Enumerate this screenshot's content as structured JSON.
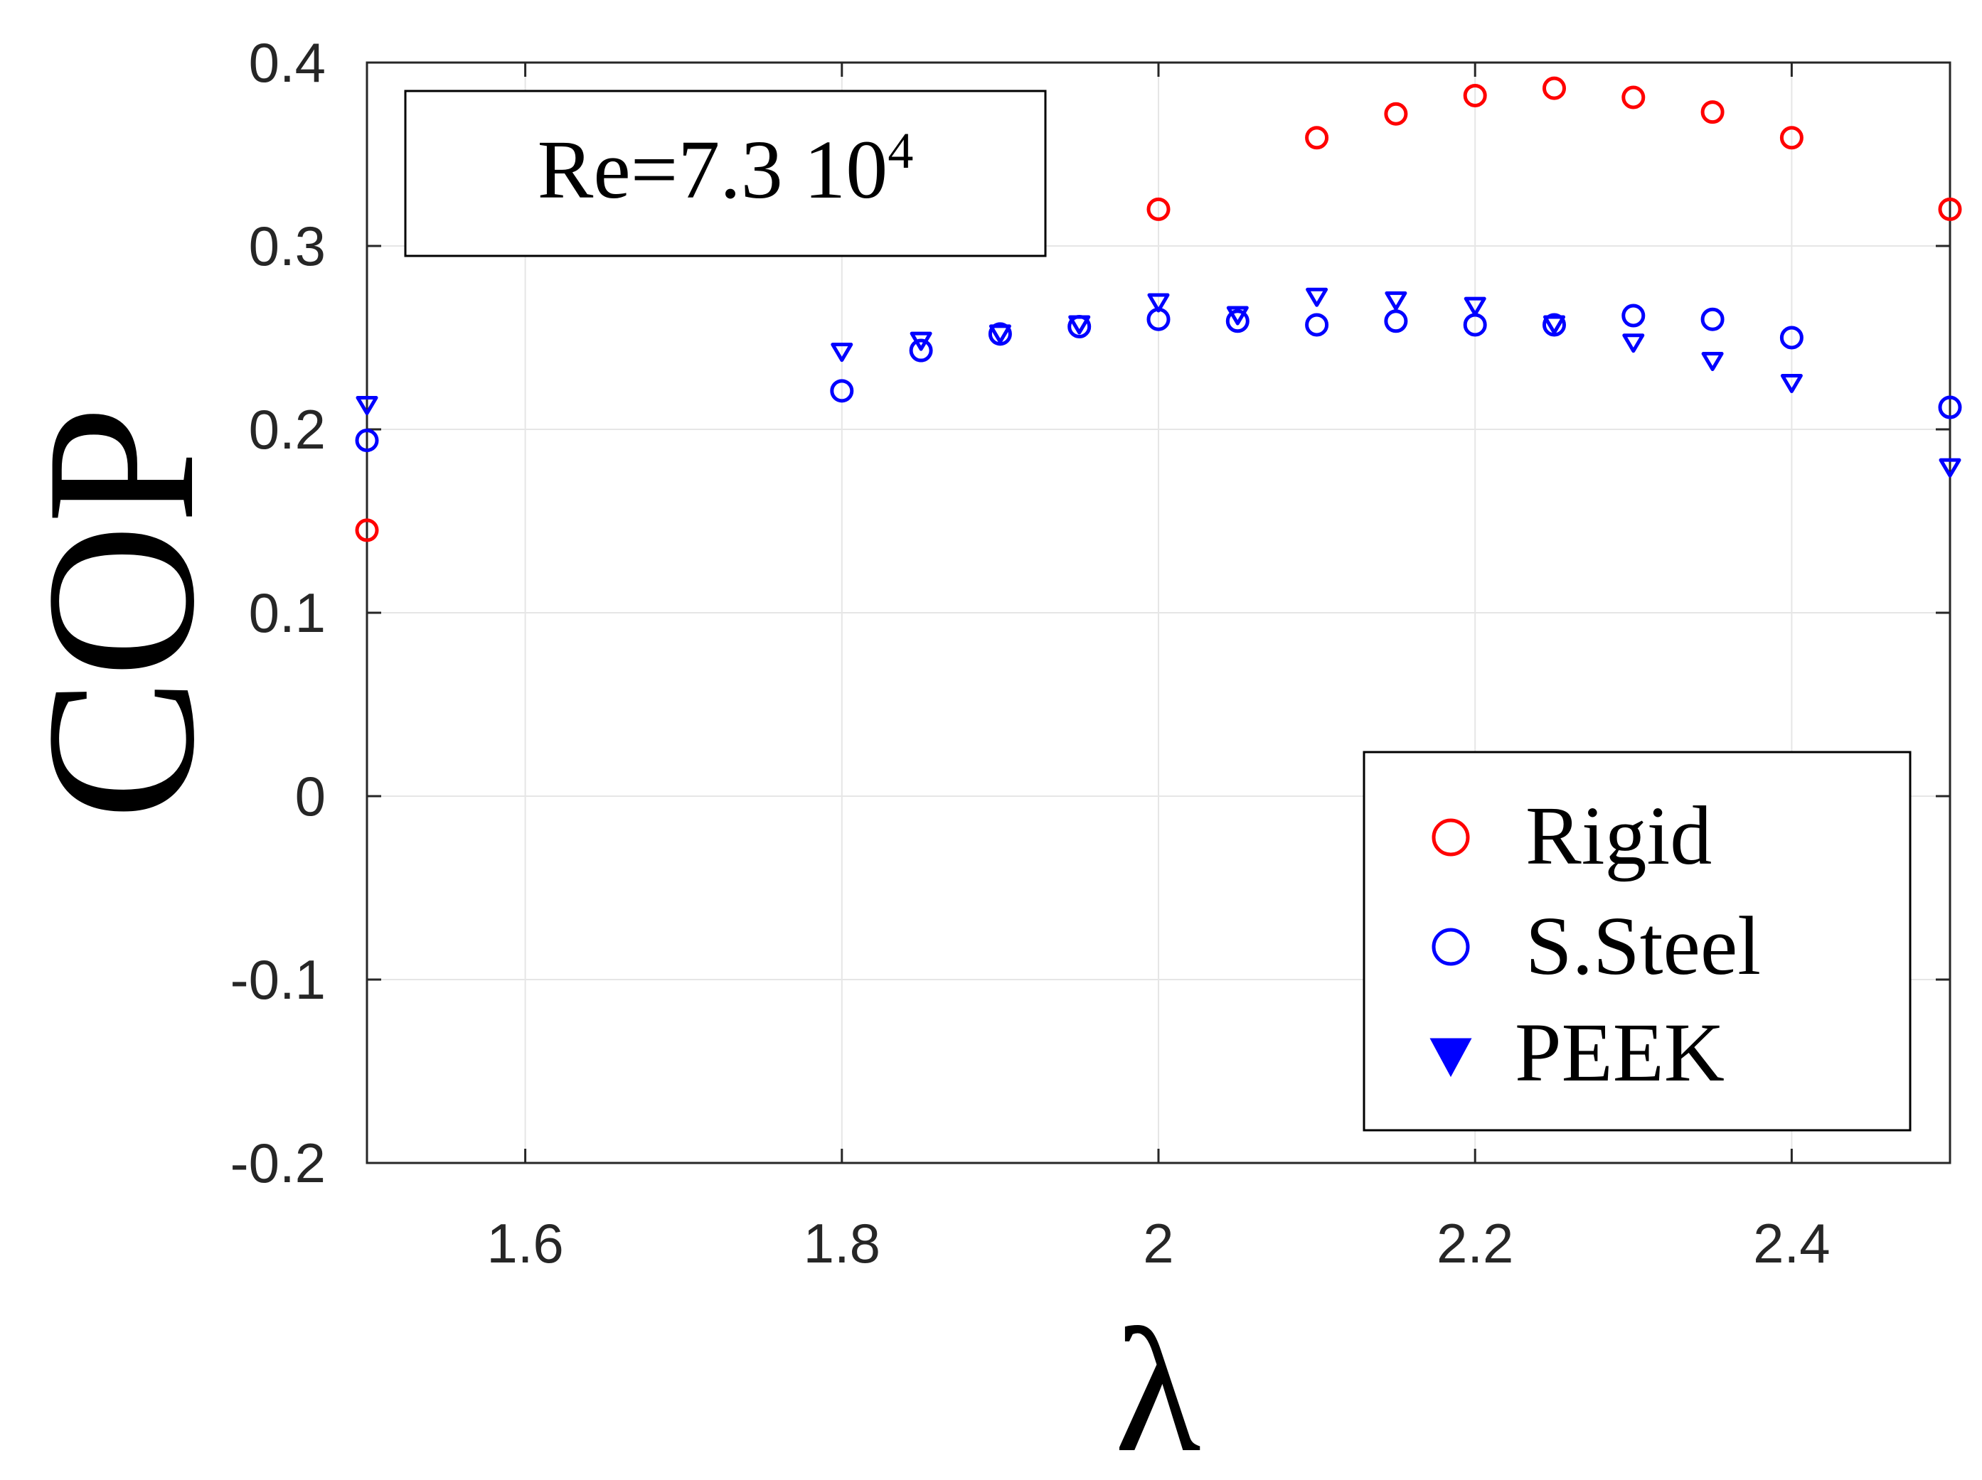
{
  "chart_data": {
    "type": "scatter",
    "title": "",
    "xlabel": "λ",
    "ylabel": "COP",
    "xlim": [
      1.5,
      2.5
    ],
    "ylim": [
      -0.2,
      0.4
    ],
    "xticks": [
      1.6,
      1.8,
      2.0,
      2.2,
      2.4
    ],
    "xtick_labels": [
      "1.6",
      "1.8",
      "2",
      "2.2",
      "2.4"
    ],
    "yticks": [
      -0.2,
      -0.1,
      0,
      0.1,
      0.2,
      0.3,
      0.4
    ],
    "ytick_labels": [
      "-0.2",
      "-0.1",
      "0",
      "0.1",
      "0.2",
      "0.3",
      "0.4"
    ],
    "grid": true,
    "annotation": {
      "text": "Re=7.3 10",
      "superscript": "4"
    },
    "legend_position": "bottom-right",
    "series": [
      {
        "name": "Rigid",
        "marker": "circle-open",
        "color": "#ff0000",
        "x": [
          1.5,
          2.0,
          2.1,
          2.15,
          2.2,
          2.25,
          2.3,
          2.35,
          2.4,
          2.5
        ],
        "y": [
          0.145,
          0.32,
          0.359,
          0.372,
          0.382,
          0.386,
          0.381,
          0.373,
          0.359,
          0.32
        ]
      },
      {
        "name": "S.Steel",
        "marker": "circle-open",
        "color": "#0000ff",
        "x": [
          1.5,
          1.8,
          1.85,
          1.9,
          1.95,
          2.0,
          2.05,
          2.1,
          2.15,
          2.2,
          2.25,
          2.3,
          2.35,
          2.4,
          2.5
        ],
        "y": [
          0.194,
          0.221,
          0.243,
          0.252,
          0.256,
          0.26,
          0.259,
          0.257,
          0.259,
          0.257,
          0.257,
          0.262,
          0.26,
          0.25,
          0.212
        ]
      },
      {
        "name": "PEEK",
        "marker": "triangle-down",
        "color": "#0000ff",
        "x": [
          1.5,
          1.8,
          1.85,
          1.9,
          1.95,
          2.0,
          2.05,
          2.1,
          2.15,
          2.2,
          2.25,
          2.3,
          2.35,
          2.4,
          2.5
        ],
        "y": [
          0.213,
          0.242,
          0.248,
          0.252,
          0.257,
          0.269,
          0.262,
          0.272,
          0.27,
          0.267,
          0.257,
          0.247,
          0.237,
          0.225,
          0.179
        ]
      }
    ]
  }
}
